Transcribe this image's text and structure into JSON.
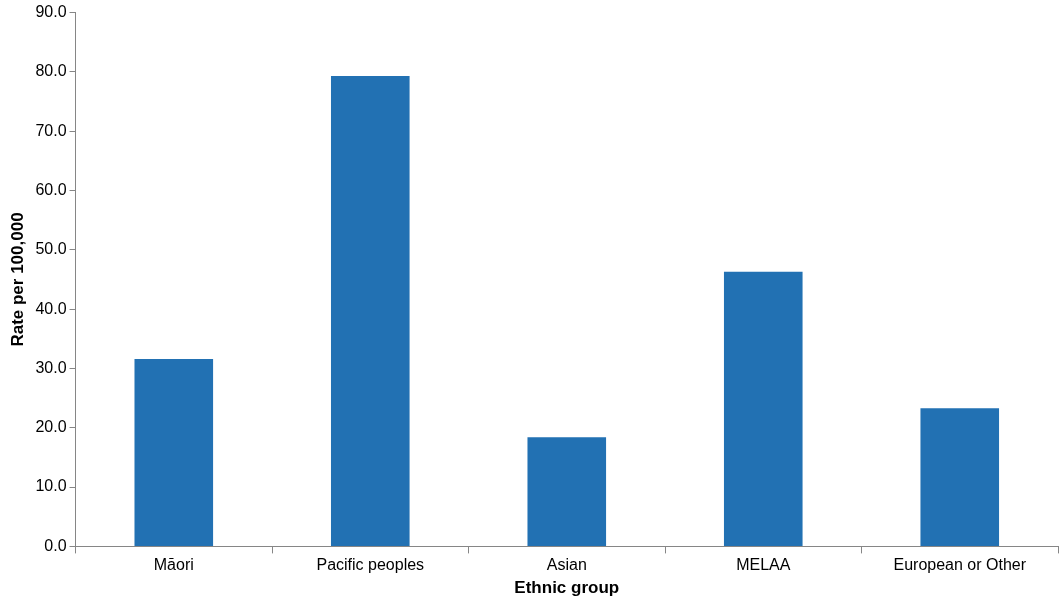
{
  "chart_data": {
    "type": "bar",
    "xlabel": "Ethnic group",
    "ylabel": "Rate per 100,000",
    "categories": [
      "Māori",
      "Pacific peoples",
      "Asian",
      "MELAA",
      "European or Other"
    ],
    "values": [
      31.6,
      79.3,
      18.4,
      46.3,
      23.3
    ],
    "color": "#2271b3",
    "ylim": [
      0,
      90
    ],
    "yticks": [
      {
        "value": 0,
        "label": "0.0"
      },
      {
        "value": 10,
        "label": "10.0"
      },
      {
        "value": 20,
        "label": "20.0"
      },
      {
        "value": 30,
        "label": "30.0"
      },
      {
        "value": 40,
        "label": "40.0"
      },
      {
        "value": 50,
        "label": "50.0"
      },
      {
        "value": 60,
        "label": "60.0"
      },
      {
        "value": 70,
        "label": "70.0"
      },
      {
        "value": 80,
        "label": "80.0"
      },
      {
        "value": 90,
        "label": "90.0"
      }
    ],
    "grid": false,
    "legend": false
  }
}
